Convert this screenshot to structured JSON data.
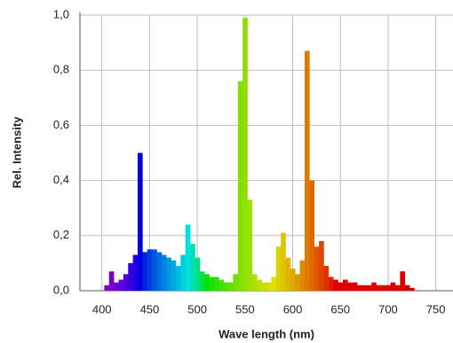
{
  "chart_data": {
    "type": "bar",
    "x_label": "Wave length (nm)",
    "y_label": "Rel. Intensity",
    "x": [
      405,
      410,
      415,
      420,
      425,
      430,
      435,
      440,
      445,
      450,
      455,
      460,
      465,
      470,
      475,
      480,
      485,
      490,
      495,
      500,
      505,
      510,
      515,
      520,
      525,
      530,
      535,
      540,
      545,
      550,
      555,
      560,
      565,
      570,
      575,
      580,
      585,
      590,
      595,
      600,
      605,
      610,
      615,
      620,
      625,
      630,
      635,
      640,
      645,
      650,
      655,
      660,
      665,
      670,
      675,
      680,
      685,
      690,
      695,
      700,
      705,
      710,
      715,
      720,
      725
    ],
    "values": [
      0.02,
      0.07,
      0.03,
      0.04,
      0.06,
      0.1,
      0.13,
      0.5,
      0.14,
      0.15,
      0.15,
      0.14,
      0.13,
      0.12,
      0.11,
      0.09,
      0.13,
      0.24,
      0.17,
      0.12,
      0.07,
      0.06,
      0.05,
      0.05,
      0.04,
      0.03,
      0.03,
      0.06,
      0.76,
      0.99,
      0.33,
      0.06,
      0.04,
      0.03,
      0.03,
      0.05,
      0.16,
      0.21,
      0.12,
      0.08,
      0.06,
      0.11,
      0.87,
      0.4,
      0.16,
      0.18,
      0.09,
      0.05,
      0.04,
      0.03,
      0.04,
      0.03,
      0.03,
      0.02,
      0.02,
      0.02,
      0.03,
      0.02,
      0.02,
      0.02,
      0.03,
      0.02,
      0.07,
      0.02,
      0.01
    ],
    "xlim": [
      377,
      768
    ],
    "xticks": [
      400,
      450,
      500,
      550,
      600,
      650,
      700,
      750
    ],
    "ylim": [
      0,
      1
    ],
    "yticks": [
      {
        "value": 0,
        "label": "0,0"
      },
      {
        "value": 0.2,
        "label": "0,2"
      },
      {
        "value": 0.4,
        "label": "0,4"
      },
      {
        "value": 0.6,
        "label": "0,6"
      },
      {
        "value": 0.8,
        "label": "0,8"
      },
      {
        "value": 1,
        "label": "1,0"
      }
    ],
    "grid": true
  }
}
